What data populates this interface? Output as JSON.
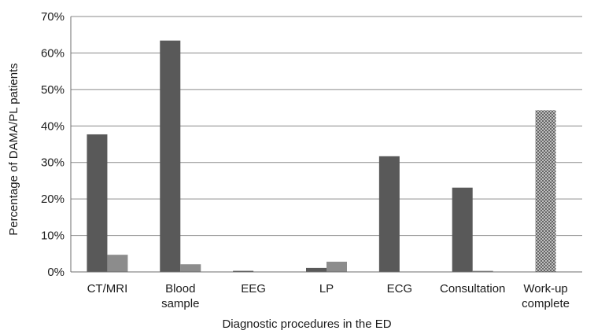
{
  "chart_data": {
    "type": "bar",
    "title": "",
    "xlabel": "Diagnostic procedures in the ED",
    "ylabel": "Percentage of DAMA/PL patients",
    "ylim": [
      0,
      70
    ],
    "ytick_values": [
      0,
      10,
      20,
      30,
      40,
      50,
      60,
      70
    ],
    "ytick_labels": [
      "0%",
      "10%",
      "20%",
      "30%",
      "40%",
      "50%",
      "60%",
      "70%"
    ],
    "grid": true,
    "legend": "none",
    "categories": [
      [
        "CT/MRI"
      ],
      [
        "Blood",
        "sample"
      ],
      [
        "EEG"
      ],
      [
        "LP"
      ],
      [
        "ECG"
      ],
      [
        "Consultation"
      ],
      [
        "Work-up",
        "complete"
      ]
    ],
    "series": [
      {
        "color": "#595959",
        "pattern": "solid",
        "values": [
          37.7,
          63.4,
          0.3,
          1.1,
          31.7,
          23.1,
          null
        ]
      },
      {
        "color": "#8c8c8c",
        "pattern": "solid",
        "values": [
          4.7,
          2.1,
          0,
          2.8,
          0,
          0.3,
          null
        ]
      },
      {
        "color": "#9a9a9a",
        "pattern": "crosshatch",
        "values": [
          null,
          null,
          null,
          null,
          null,
          null,
          44.3
        ]
      }
    ]
  }
}
